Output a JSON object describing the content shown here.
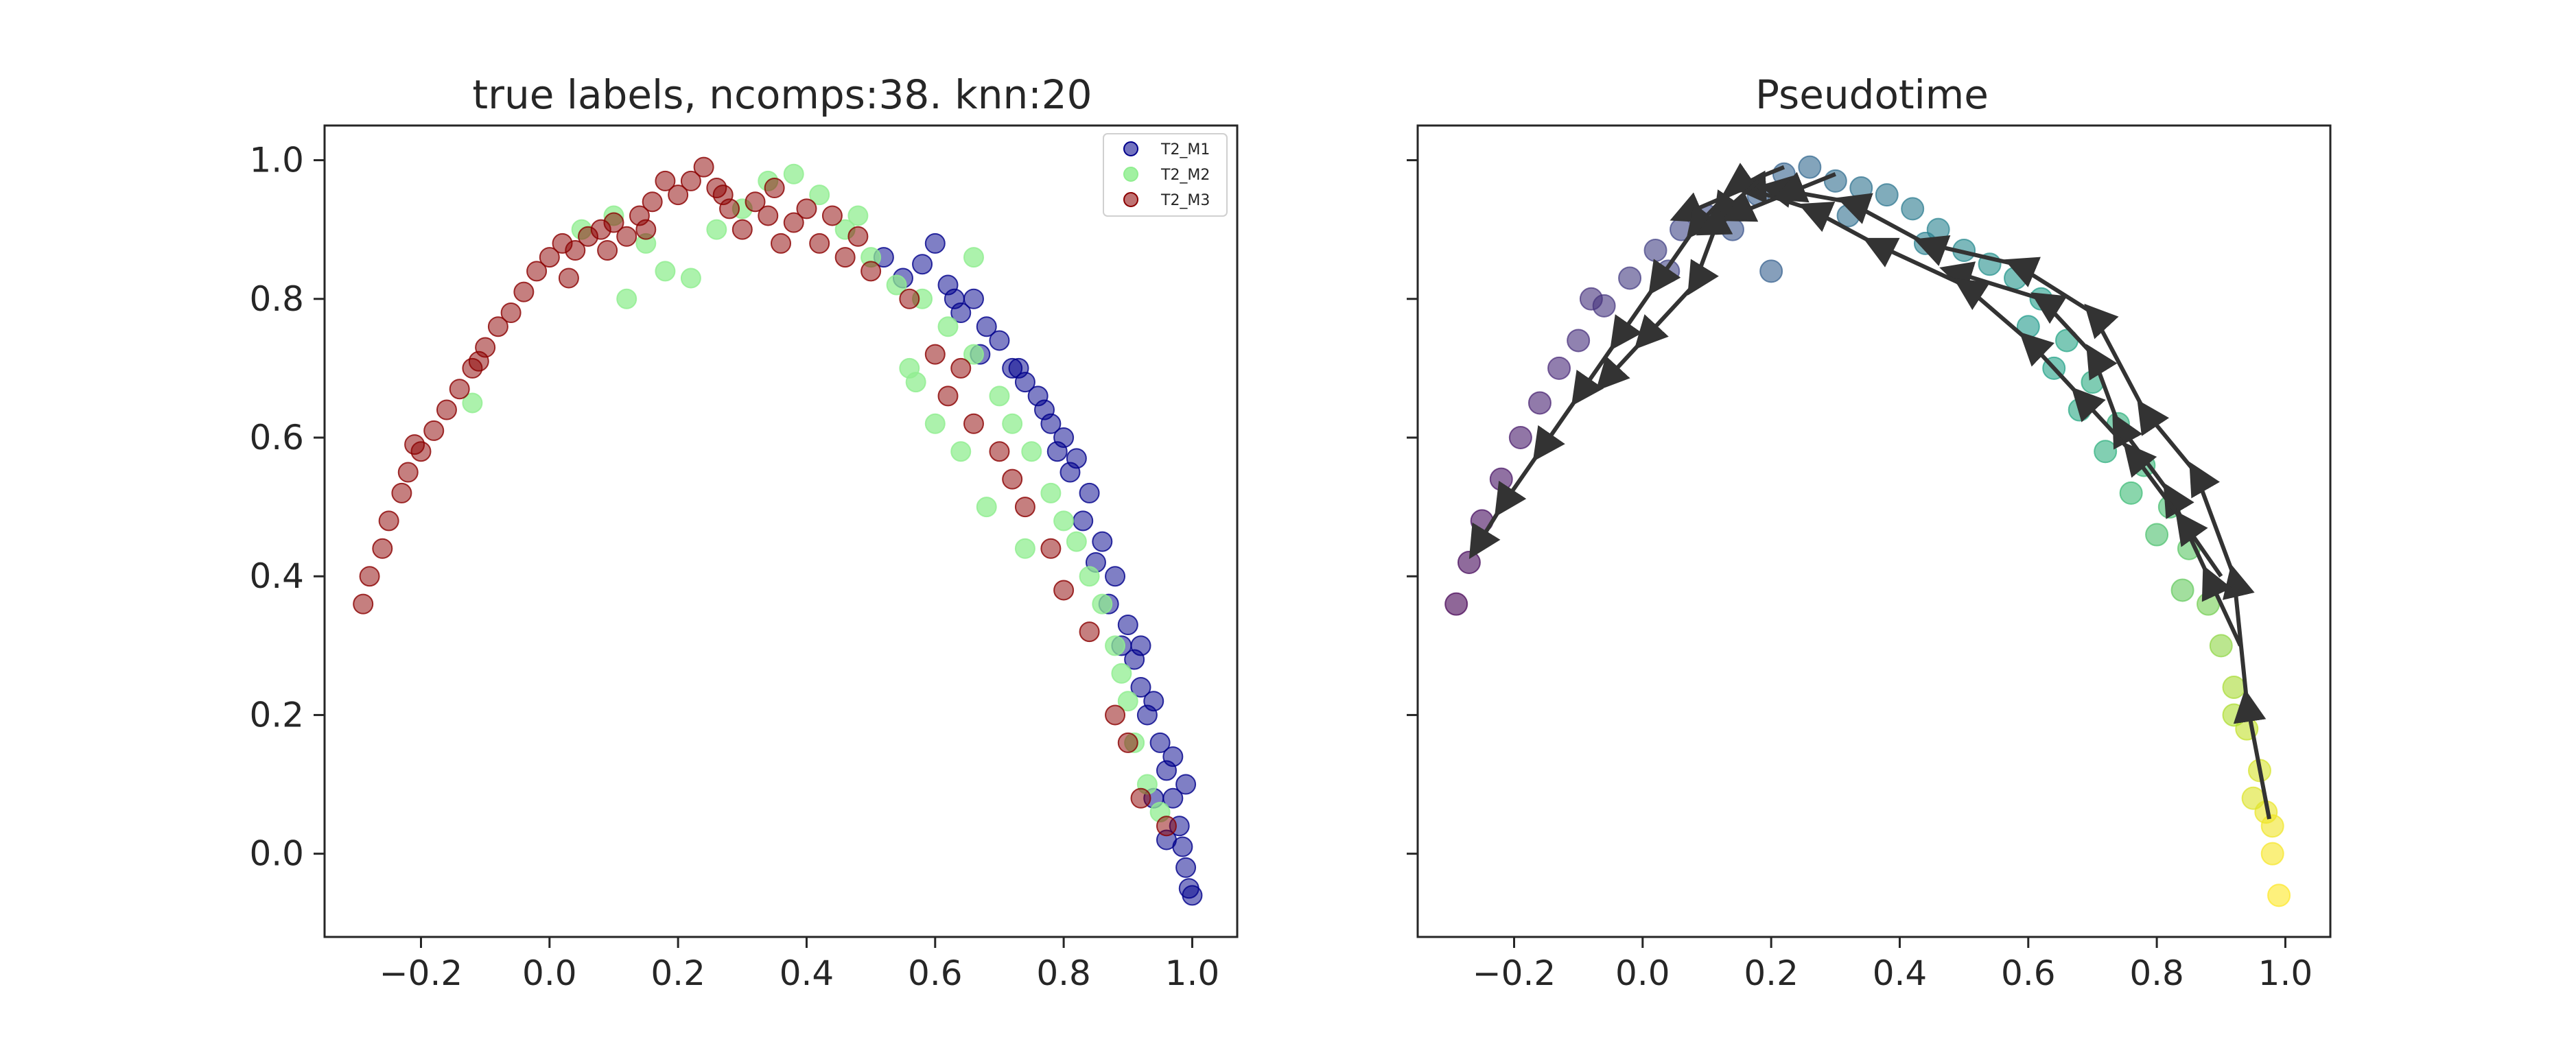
{
  "chart_data": [
    {
      "type": "scatter",
      "title": "true labels, ncomps:38. knn:20",
      "xlabel": "",
      "ylabel": "",
      "xlim": [
        -0.35,
        1.07
      ],
      "ylim": [
        -0.12,
        1.05
      ],
      "xticks": [
        -0.2,
        0.0,
        0.2,
        0.4,
        0.6,
        0.8,
        1.0
      ],
      "xtick_labels": [
        "−0.2",
        "0.0",
        "0.2",
        "0.4",
        "0.6",
        "0.8",
        "1.0"
      ],
      "yticks": [
        0.0,
        0.2,
        0.4,
        0.6,
        0.8,
        1.0
      ],
      "ytick_labels": [
        "0.0",
        "0.2",
        "0.4",
        "0.6",
        "0.8",
        "1.0"
      ],
      "grid": false,
      "legend": "top-right",
      "series": [
        {
          "name": "T2_M1",
          "color": "#00008b",
          "points": [
            [
              0.58,
              0.85
            ],
            [
              0.6,
              0.88
            ],
            [
              0.62,
              0.82
            ],
            [
              0.64,
              0.78
            ],
            [
              0.66,
              0.8
            ],
            [
              0.7,
              0.74
            ],
            [
              0.72,
              0.7
            ],
            [
              0.74,
              0.68
            ],
            [
              0.76,
              0.66
            ],
            [
              0.78,
              0.62
            ],
            [
              0.8,
              0.6
            ],
            [
              0.82,
              0.57
            ],
            [
              0.84,
              0.52
            ],
            [
              0.83,
              0.48
            ],
            [
              0.86,
              0.45
            ],
            [
              0.88,
              0.4
            ],
            [
              0.87,
              0.36
            ],
            [
              0.9,
              0.33
            ],
            [
              0.91,
              0.28
            ],
            [
              0.92,
              0.24
            ],
            [
              0.93,
              0.2
            ],
            [
              0.95,
              0.16
            ],
            [
              0.96,
              0.12
            ],
            [
              0.97,
              0.08
            ],
            [
              0.98,
              0.04
            ],
            [
              0.985,
              0.01
            ],
            [
              0.99,
              -0.02
            ],
            [
              0.995,
              -0.05
            ],
            [
              0.99,
              0.1
            ],
            [
              0.97,
              0.14
            ],
            [
              0.94,
              0.22
            ],
            [
              0.89,
              0.3
            ],
            [
              0.85,
              0.42
            ],
            [
              0.81,
              0.55
            ],
            [
              0.77,
              0.64
            ],
            [
              0.73,
              0.7
            ],
            [
              0.68,
              0.76
            ],
            [
              0.63,
              0.8
            ],
            [
              0.55,
              0.83
            ],
            [
              0.52,
              0.86
            ],
            [
              0.67,
              0.72
            ],
            [
              0.79,
              0.58
            ],
            [
              0.92,
              0.3
            ],
            [
              1.0,
              -0.06
            ],
            [
              0.96,
              0.02
            ],
            [
              0.94,
              0.08
            ]
          ]
        },
        {
          "name": "T2_M2",
          "color": "#90ee90",
          "points": [
            [
              0.05,
              0.9
            ],
            [
              0.1,
              0.92
            ],
            [
              0.15,
              0.88
            ],
            [
              0.18,
              0.84
            ],
            [
              0.22,
              0.83
            ],
            [
              0.26,
              0.9
            ],
            [
              0.3,
              0.93
            ],
            [
              0.34,
              0.97
            ],
            [
              0.38,
              0.98
            ],
            [
              0.42,
              0.95
            ],
            [
              0.46,
              0.9
            ],
            [
              0.5,
              0.86
            ],
            [
              0.54,
              0.82
            ],
            [
              0.58,
              0.8
            ],
            [
              0.62,
              0.76
            ],
            [
              0.66,
              0.72
            ],
            [
              0.7,
              0.66
            ],
            [
              0.72,
              0.62
            ],
            [
              0.75,
              0.58
            ],
            [
              0.78,
              0.52
            ],
            [
              0.8,
              0.48
            ],
            [
              0.82,
              0.45
            ],
            [
              0.84,
              0.4
            ],
            [
              0.86,
              0.36
            ],
            [
              0.88,
              0.3
            ],
            [
              0.89,
              0.26
            ],
            [
              0.9,
              0.22
            ],
            [
              0.91,
              0.16
            ],
            [
              0.93,
              0.1
            ],
            [
              0.95,
              0.06
            ],
            [
              0.6,
              0.62
            ],
            [
              0.64,
              0.58
            ],
            [
              0.57,
              0.68
            ],
            [
              0.68,
              0.5
            ],
            [
              0.74,
              0.44
            ],
            [
              0.12,
              0.8
            ],
            [
              -0.12,
              0.65
            ],
            [
              0.56,
              0.7
            ],
            [
              0.48,
              0.92
            ],
            [
              0.66,
              0.86
            ]
          ]
        },
        {
          "name": "T2_M3",
          "color": "#8b0000",
          "points": [
            [
              -0.29,
              0.36
            ],
            [
              -0.28,
              0.4
            ],
            [
              -0.26,
              0.44
            ],
            [
              -0.25,
              0.48
            ],
            [
              -0.23,
              0.52
            ],
            [
              -0.22,
              0.55
            ],
            [
              -0.2,
              0.58
            ],
            [
              -0.18,
              0.61
            ],
            [
              -0.16,
              0.64
            ],
            [
              -0.14,
              0.67
            ],
            [
              -0.12,
              0.7
            ],
            [
              -0.1,
              0.73
            ],
            [
              -0.08,
              0.76
            ],
            [
              -0.06,
              0.78
            ],
            [
              -0.04,
              0.81
            ],
            [
              -0.02,
              0.84
            ],
            [
              0.0,
              0.86
            ],
            [
              0.02,
              0.88
            ],
            [
              0.04,
              0.87
            ],
            [
              0.06,
              0.89
            ],
            [
              0.08,
              0.9
            ],
            [
              0.1,
              0.91
            ],
            [
              0.12,
              0.89
            ],
            [
              0.14,
              0.92
            ],
            [
              0.16,
              0.94
            ],
            [
              0.18,
              0.97
            ],
            [
              0.2,
              0.95
            ],
            [
              0.22,
              0.97
            ],
            [
              0.24,
              0.99
            ],
            [
              0.26,
              0.96
            ],
            [
              0.28,
              0.93
            ],
            [
              0.3,
              0.9
            ],
            [
              0.32,
              0.94
            ],
            [
              0.34,
              0.92
            ],
            [
              0.36,
              0.88
            ],
            [
              0.38,
              0.91
            ],
            [
              0.4,
              0.93
            ],
            [
              0.42,
              0.88
            ],
            [
              0.44,
              0.92
            ],
            [
              0.46,
              0.86
            ],
            [
              0.48,
              0.89
            ],
            [
              0.5,
              0.84
            ],
            [
              0.56,
              0.8
            ],
            [
              0.6,
              0.72
            ],
            [
              0.62,
              0.66
            ],
            [
              0.64,
              0.7
            ],
            [
              0.66,
              0.62
            ],
            [
              0.7,
              0.58
            ],
            [
              0.72,
              0.54
            ],
            [
              0.74,
              0.5
            ],
            [
              0.78,
              0.44
            ],
            [
              0.8,
              0.38
            ],
            [
              0.84,
              0.32
            ],
            [
              0.88,
              0.2
            ],
            [
              0.9,
              0.16
            ],
            [
              0.92,
              0.08
            ],
            [
              0.96,
              0.04
            ],
            [
              -0.21,
              0.59
            ],
            [
              -0.11,
              0.71
            ],
            [
              0.03,
              0.83
            ],
            [
              0.09,
              0.87
            ],
            [
              0.15,
              0.9
            ],
            [
              0.27,
              0.95
            ],
            [
              0.35,
              0.96
            ]
          ]
        }
      ]
    },
    {
      "type": "scatter",
      "title": "Pseudotime",
      "xlabel": "",
      "ylabel": "",
      "xlim": [
        -0.35,
        1.07
      ],
      "ylim": [
        -0.12,
        1.05
      ],
      "xticks": [
        -0.2,
        0.0,
        0.2,
        0.4,
        0.6,
        0.8,
        1.0
      ],
      "xtick_labels": [
        "−0.2",
        "0.0",
        "0.2",
        "0.4",
        "0.6",
        "0.8",
        "1.0"
      ],
      "yticks": [
        0.0,
        0.2,
        0.4,
        0.6,
        0.8,
        1.0
      ],
      "grid": false,
      "colormap": "viridis",
      "color_by": "pseudotime (0 = purple, 1 = yellow)",
      "points": [
        [
          -0.29,
          0.36,
          0.0
        ],
        [
          -0.27,
          0.42,
          0.02
        ],
        [
          -0.25,
          0.48,
          0.03
        ],
        [
          -0.22,
          0.54,
          0.05
        ],
        [
          -0.19,
          0.6,
          0.07
        ],
        [
          -0.16,
          0.65,
          0.09
        ],
        [
          -0.13,
          0.7,
          0.11
        ],
        [
          -0.1,
          0.74,
          0.13
        ],
        [
          -0.06,
          0.79,
          0.15
        ],
        [
          -0.02,
          0.83,
          0.17
        ],
        [
          0.02,
          0.87,
          0.19
        ],
        [
          0.06,
          0.9,
          0.21
        ],
        [
          0.1,
          0.92,
          0.23
        ],
        [
          0.14,
          0.9,
          0.26
        ],
        [
          0.18,
          0.95,
          0.29
        ],
        [
          0.22,
          0.98,
          0.31
        ],
        [
          0.26,
          0.99,
          0.33
        ],
        [
          0.3,
          0.97,
          0.35
        ],
        [
          0.34,
          0.96,
          0.37
        ],
        [
          0.38,
          0.95,
          0.39
        ],
        [
          0.42,
          0.93,
          0.41
        ],
        [
          0.46,
          0.9,
          0.44
        ],
        [
          0.5,
          0.87,
          0.47
        ],
        [
          0.54,
          0.85,
          0.5
        ],
        [
          0.58,
          0.83,
          0.52
        ],
        [
          0.62,
          0.8,
          0.55
        ],
        [
          0.66,
          0.74,
          0.58
        ],
        [
          0.7,
          0.68,
          0.61
        ],
        [
          0.74,
          0.62,
          0.64
        ],
        [
          0.78,
          0.56,
          0.67
        ],
        [
          0.82,
          0.5,
          0.7
        ],
        [
          0.85,
          0.44,
          0.74
        ],
        [
          0.88,
          0.36,
          0.79
        ],
        [
          0.9,
          0.3,
          0.83
        ],
        [
          0.92,
          0.24,
          0.87
        ],
        [
          0.94,
          0.18,
          0.91
        ],
        [
          0.96,
          0.12,
          0.94
        ],
        [
          0.97,
          0.06,
          0.97
        ],
        [
          0.98,
          0.0,
          0.99
        ],
        [
          0.99,
          -0.06,
          1.0
        ],
        [
          0.2,
          0.84,
          0.3
        ],
        [
          0.68,
          0.64,
          0.6
        ],
        [
          0.72,
          0.58,
          0.63
        ],
        [
          0.6,
          0.76,
          0.54
        ],
        [
          0.64,
          0.7,
          0.57
        ],
        [
          0.84,
          0.38,
          0.76
        ],
        [
          0.8,
          0.46,
          0.71
        ],
        [
          0.95,
          0.08,
          0.95
        ],
        [
          -0.08,
          0.8,
          0.14
        ],
        [
          0.04,
          0.84,
          0.2
        ],
        [
          0.32,
          0.92,
          0.36
        ],
        [
          0.44,
          0.88,
          0.43
        ],
        [
          0.76,
          0.52,
          0.68
        ],
        [
          0.92,
          0.2,
          0.88
        ],
        [
          0.98,
          0.04,
          0.98
        ]
      ],
      "trajectory_arrows": [
        [
          [
            0.975,
            0.05
          ],
          [
            0.94,
            0.22
          ],
          [
            0.92,
            0.4
          ],
          [
            0.86,
            0.55
          ],
          [
            0.78,
            0.64
          ],
          [
            0.7,
            0.78
          ],
          [
            0.58,
            0.85
          ],
          [
            0.44,
            0.88
          ],
          [
            0.32,
            0.94
          ],
          [
            0.2,
            0.96
          ]
        ],
        [
          [
            0.93,
            0.3
          ],
          [
            0.88,
            0.4
          ],
          [
            0.82,
            0.52
          ],
          [
            0.74,
            0.62
          ],
          [
            0.7,
            0.72
          ],
          [
            0.62,
            0.8
          ],
          [
            0.48,
            0.84
          ]
        ],
        [
          [
            0.9,
            0.4
          ],
          [
            0.84,
            0.48
          ],
          [
            0.76,
            0.58
          ],
          [
            0.68,
            0.66
          ],
          [
            0.6,
            0.74
          ],
          [
            0.5,
            0.82
          ],
          [
            0.36,
            0.88
          ],
          [
            0.26,
            0.93
          ],
          [
            0.16,
            0.96
          ],
          [
            0.06,
            0.92
          ]
        ],
        [
          [
            0.22,
            0.99
          ],
          [
            0.14,
            0.96
          ],
          [
            0.08,
            0.9
          ],
          [
            0.02,
            0.82
          ],
          [
            -0.04,
            0.74
          ],
          [
            -0.1,
            0.66
          ],
          [
            -0.16,
            0.58
          ],
          [
            -0.22,
            0.5
          ],
          [
            -0.26,
            0.44
          ]
        ],
        [
          [
            0.18,
            0.97
          ],
          [
            0.12,
            0.92
          ],
          [
            0.08,
            0.82
          ],
          [
            0.0,
            0.74
          ],
          [
            -0.06,
            0.68
          ]
        ],
        [
          [
            0.3,
            0.98
          ],
          [
            0.22,
            0.95
          ],
          [
            0.14,
            0.92
          ],
          [
            0.1,
            0.9
          ]
        ]
      ]
    }
  ]
}
